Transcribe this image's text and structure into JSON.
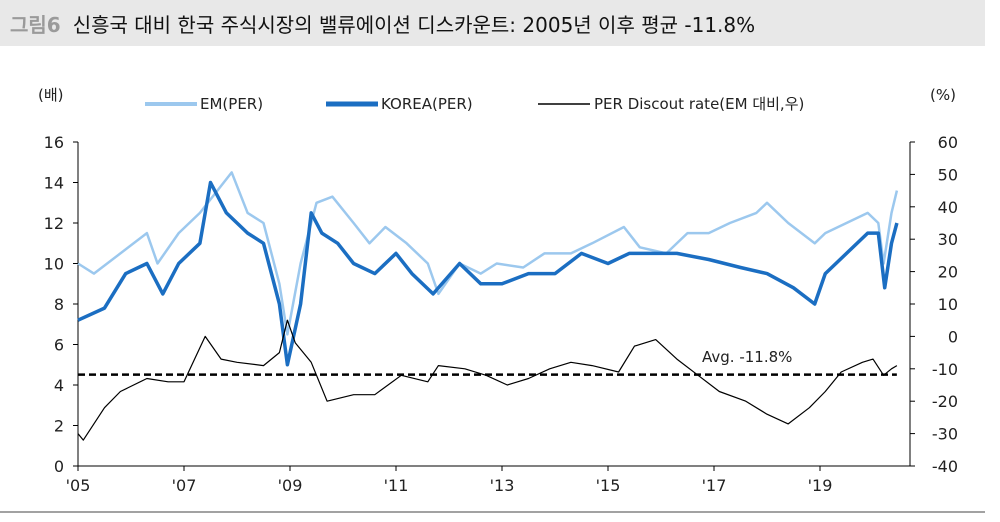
{
  "header": {
    "figure_label": "그림6",
    "title": "신흥국 대비 한국 주식시장의 밸류에이션 디스카운트: 2005년 이후 평균 -11.8%"
  },
  "chart_data": {
    "type": "line",
    "title": "신흥국 대비 한국 주식시장의 밸류에이션 디스카운트: 2005년 이후 평균 -11.8%",
    "ylabel_left": "(배)",
    "ylabel_right": "(%)",
    "ylim_left": [
      0,
      16
    ],
    "ylim_right": [
      -40,
      60
    ],
    "yticks_left": [
      "0",
      "2",
      "4",
      "6",
      "8",
      "10",
      "12",
      "14",
      "16"
    ],
    "yticks_right": [
      "-40",
      "-30",
      "-20",
      "-10",
      "0",
      "10",
      "20",
      "30",
      "40",
      "50",
      "60"
    ],
    "xticks": [
      {
        "x": 2005,
        "label": "'05"
      },
      {
        "x": 2007,
        "label": "'07"
      },
      {
        "x": 2009,
        "label": "'09"
      },
      {
        "x": 2011,
        "label": "'11"
      },
      {
        "x": 2013,
        "label": "'13"
      },
      {
        "x": 2015,
        "label": "'15"
      },
      {
        "x": 2017,
        "label": "'17"
      },
      {
        "x": 2019,
        "label": "'19"
      }
    ],
    "legend_placement": "top",
    "grid": false,
    "series": [
      {
        "name": "EM(PER)",
        "axis": "left",
        "color": "#9cc8ee",
        "x": [
          2005,
          2005.3,
          2005.8,
          2006.3,
          2006.5,
          2006.9,
          2007.3,
          2007.6,
          2007.9,
          2008.2,
          2008.5,
          2008.8,
          2008.95,
          2009.2,
          2009.5,
          2009.8,
          2010.2,
          2010.5,
          2010.8,
          2011.2,
          2011.6,
          2011.8,
          2012.2,
          2012.6,
          2012.9,
          2013.4,
          2013.8,
          2014.3,
          2014.7,
          2015.3,
          2015.6,
          2016.1,
          2016.5,
          2016.9,
          2017.3,
          2017.8,
          2018.0,
          2018.4,
          2018.9,
          2019.1,
          2019.5,
          2019.9,
          2020.1,
          2020.2,
          2020.35,
          2020.45
        ],
        "y": [
          10,
          9.5,
          10.5,
          11.5,
          10,
          11.5,
          12.5,
          13.5,
          14.5,
          12.5,
          12,
          9,
          6.5,
          10,
          13,
          13.3,
          12,
          11,
          11.8,
          11,
          10,
          8.5,
          10,
          9.5,
          10,
          9.8,
          10.5,
          10.5,
          11,
          11.8,
          10.8,
          10.5,
          11.5,
          11.5,
          12,
          12.5,
          13,
          12,
          11,
          11.5,
          12,
          12.5,
          12,
          10,
          12.5,
          13.6
        ]
      },
      {
        "name": "KOREA(PER)",
        "axis": "left",
        "color": "#1b6ec2",
        "x": [
          2005,
          2005.5,
          2005.9,
          2006.3,
          2006.6,
          2006.9,
          2007.3,
          2007.5,
          2007.8,
          2008.2,
          2008.5,
          2008.8,
          2008.95,
          2009.2,
          2009.4,
          2009.6,
          2009.9,
          2010.2,
          2010.6,
          2011.0,
          2011.3,
          2011.7,
          2012.2,
          2012.6,
          2013.0,
          2013.5,
          2014.0,
          2014.5,
          2015.0,
          2015.4,
          2015.8,
          2016.3,
          2016.9,
          2017.5,
          2018.0,
          2018.5,
          2018.9,
          2019.1,
          2019.5,
          2019.9,
          2020.1,
          2020.22,
          2020.35,
          2020.45
        ],
        "y": [
          7.2,
          7.8,
          9.5,
          10,
          8.5,
          10,
          11,
          14,
          12.5,
          11.5,
          11,
          8,
          5,
          8,
          12.5,
          11.5,
          11,
          10,
          9.5,
          10.5,
          9.5,
          8.5,
          10,
          9,
          9,
          9.5,
          9.5,
          10.5,
          10,
          10.5,
          10.5,
          10.5,
          10.2,
          9.8,
          9.5,
          8.8,
          8,
          9.5,
          10.5,
          11.5,
          11.5,
          8.8,
          11,
          12
        ]
      },
      {
        "name": "PER Discout rate(EM 대비,우)",
        "axis": "right",
        "color": "#000000",
        "x": [
          2005,
          2005.1,
          2005.5,
          2005.8,
          2006.3,
          2006.7,
          2007.0,
          2007.4,
          2007.7,
          2008.0,
          2008.5,
          2008.8,
          2008.95,
          2009.1,
          2009.4,
          2009.7,
          2010.2,
          2010.6,
          2011.1,
          2011.6,
          2011.8,
          2012.3,
          2012.7,
          2013.1,
          2013.5,
          2013.9,
          2014.3,
          2014.7,
          2015.2,
          2015.5,
          2015.9,
          2016.3,
          2016.7,
          2017.1,
          2017.6,
          2018.0,
          2018.4,
          2018.8,
          2019.1,
          2019.4,
          2019.8,
          2020.0,
          2020.2,
          2020.35,
          2020.45
        ],
        "y": [
          -30,
          -32,
          -22,
          -17,
          -13,
          -14,
          -14,
          0,
          -7,
          -8,
          -9,
          -5,
          5,
          -2,
          -8,
          -20,
          -18,
          -18,
          -12,
          -14,
          -9,
          -10,
          -12,
          -15,
          -13,
          -10,
          -8,
          -9,
          -11,
          -3,
          -1,
          -7,
          -12,
          -17,
          -20,
          -24,
          -27,
          -22,
          -17,
          -11,
          -8,
          -7,
          -12,
          -10,
          -9
        ]
      }
    ],
    "average_line": {
      "value": -11.8,
      "axis": "right",
      "label": "Avg. -11.8%"
    }
  }
}
